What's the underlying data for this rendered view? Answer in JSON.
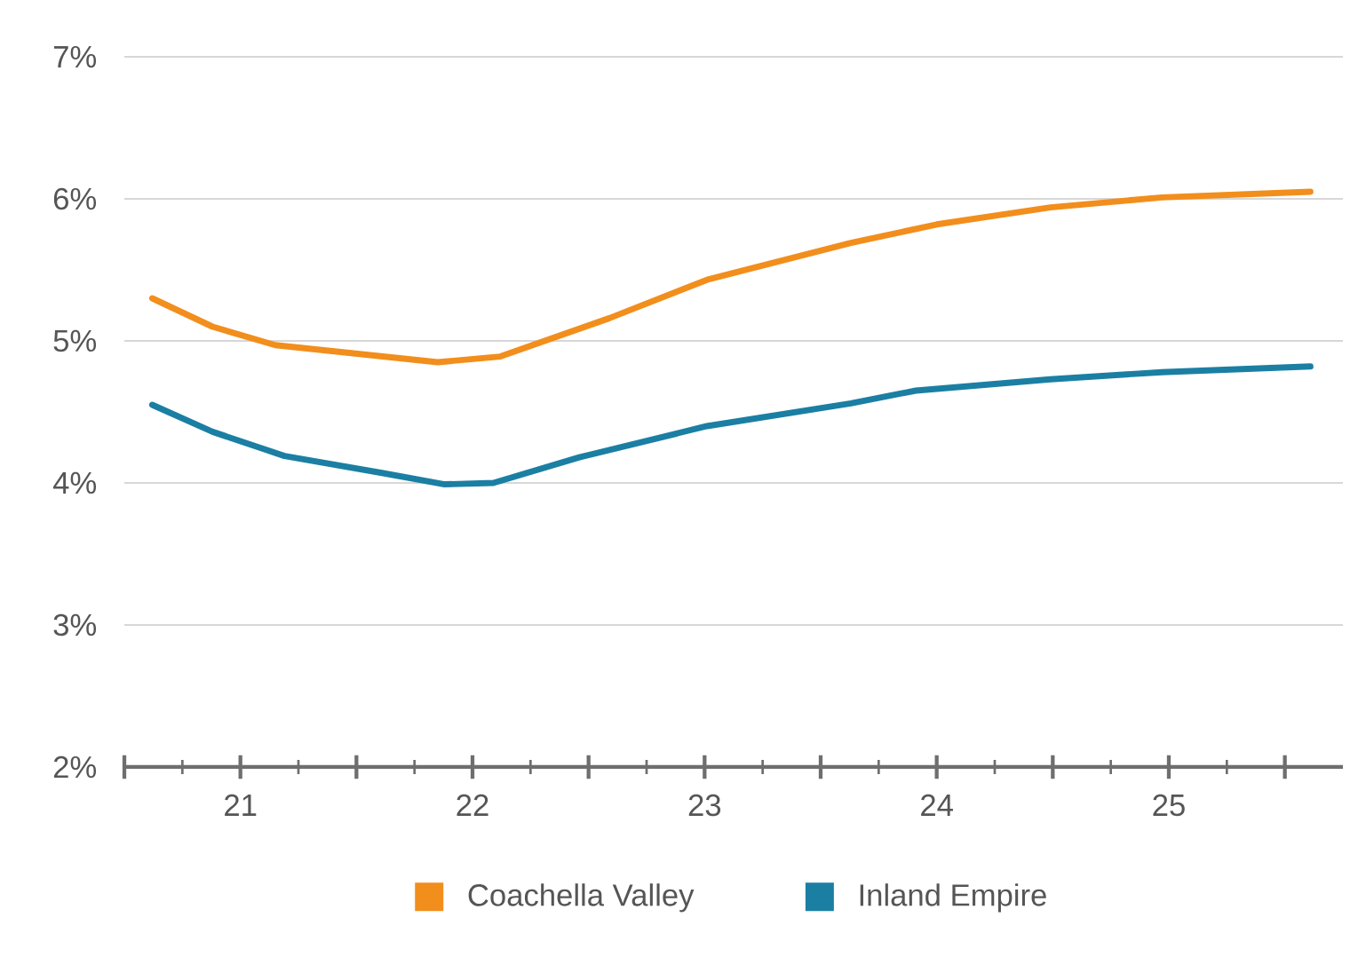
{
  "chart_data": {
    "type": "line",
    "xlim": [
      21,
      26.25
    ],
    "ylim": [
      2,
      7
    ],
    "xticks": [
      {
        "value": 21,
        "label": null
      },
      {
        "value": 21.5,
        "label": "21"
      },
      {
        "value": 22,
        "label": null
      },
      {
        "value": 22.5,
        "label": "22"
      },
      {
        "value": 23,
        "label": null
      },
      {
        "value": 23.5,
        "label": "23"
      },
      {
        "value": 24,
        "label": null
      },
      {
        "value": 24.5,
        "label": "24"
      },
      {
        "value": 25,
        "label": null
      },
      {
        "value": 25.5,
        "label": "25"
      },
      {
        "value": 26,
        "label": null
      }
    ],
    "yticks": [
      {
        "value": 2,
        "label": "2%"
      },
      {
        "value": 3,
        "label": "3%"
      },
      {
        "value": 4,
        "label": "4%"
      },
      {
        "value": 5,
        "label": "5%"
      },
      {
        "value": 6,
        "label": "6%"
      },
      {
        "value": 7,
        "label": "7%"
      }
    ],
    "grid": "y",
    "legend": "bottom",
    "marker": "none",
    "line_style": "solid",
    "series": [
      {
        "name": "Coachella Valley",
        "color": "#f28e1c",
        "x": [
          21.12,
          21.38,
          21.65,
          22.35,
          22.62,
          23.09,
          23.51,
          24.13,
          24.5,
          24.99,
          25.47,
          26.11
        ],
        "values": [
          5.3,
          5.1,
          4.97,
          4.85,
          4.89,
          5.16,
          5.43,
          5.69,
          5.82,
          5.94,
          6.01,
          6.05
        ]
      },
      {
        "name": "Inland Empire",
        "color": "#1b7fa3",
        "x": [
          21.12,
          21.38,
          21.69,
          22.11,
          22.38,
          22.59,
          22.96,
          23.51,
          24.13,
          24.41,
          24.99,
          25.47,
          26.11
        ],
        "values": [
          4.55,
          4.36,
          4.19,
          4.07,
          3.99,
          4.0,
          4.18,
          4.4,
          4.56,
          4.65,
          4.73,
          4.78,
          4.82
        ]
      }
    ]
  }
}
